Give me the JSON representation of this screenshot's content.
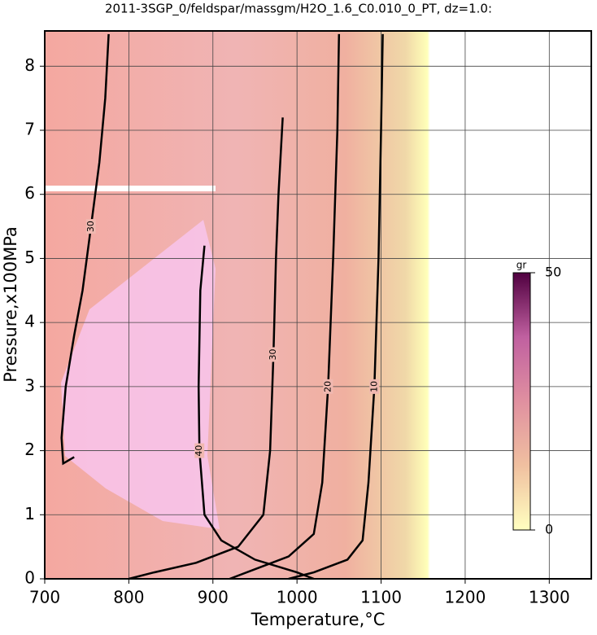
{
  "chart_data": {
    "type": "contour",
    "title": "2011-3SGP_0/feldspar/massgm/H2O_1.6_C0.010_0_PT, dz=1.0:",
    "xlabel": "Temperature,°C",
    "ylabel": "Pressure,x100MPa",
    "xlim": [
      700,
      1350
    ],
    "ylim": [
      0,
      8.55
    ],
    "xticks": [
      700,
      800,
      900,
      1000,
      1100,
      1200,
      1300
    ],
    "yticks": [
      0,
      1,
      2,
      3,
      4,
      5,
      6,
      7,
      8
    ],
    "grid": true,
    "line_color": "#000000",
    "series": [
      {
        "level": 10,
        "x": [
          1102,
          1100,
          1097,
          1092,
          1085,
          1078,
          1060,
          1020,
          990
        ],
        "y": [
          8.5,
          7,
          5,
          3,
          1.5,
          0.6,
          0.3,
          0.1,
          0
        ]
      },
      {
        "level": 20,
        "x": [
          1050,
          1048,
          1043,
          1037,
          1030,
          1020,
          990,
          950,
          920
        ],
        "y": [
          8.5,
          7,
          5,
          3,
          1.5,
          0.7,
          0.35,
          0.15,
          0
        ]
      },
      {
        "level": 30,
        "x": [
          983,
          978,
          975,
          972,
          968,
          960,
          930,
          880,
          830,
          800
        ],
        "y": [
          7.2,
          6,
          5,
          3.5,
          2,
          1,
          0.5,
          0.25,
          0.1,
          0
        ]
      },
      {
        "level": 40,
        "x": [
          890,
          885,
          883,
          884,
          890,
          910,
          950,
          1000,
          1020
        ],
        "y": [
          5.2,
          4.5,
          3,
          2,
          1,
          0.6,
          0.3,
          0.1,
          0
        ]
      },
      {
        "level": 30,
        "x": [
          776,
          772,
          765,
          755,
          745,
          735,
          725,
          720,
          722,
          735
        ],
        "y": [
          8.5,
          7.5,
          6.5,
          5.5,
          4.5,
          3.8,
          3,
          2.2,
          1.8,
          1.9
        ]
      }
    ],
    "colorbar": {
      "label": "gr",
      "ticks": [
        0,
        50
      ],
      "colors": [
        "#ffffc0",
        "#f0c0a0",
        "#e090a0",
        "#c060a0",
        "#500040"
      ]
    }
  }
}
